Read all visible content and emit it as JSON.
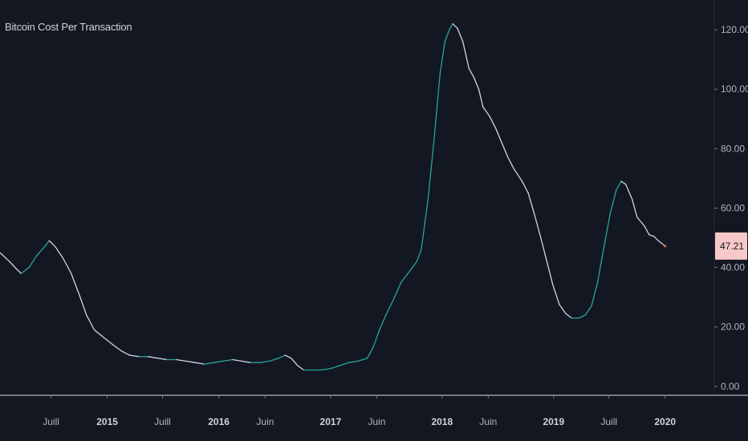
{
  "chart_data": {
    "type": "line",
    "title": "Bitcoin Cost Per Transaction",
    "xlabel": "",
    "ylabel": "",
    "ylim": [
      -3,
      130
    ],
    "xlim": [
      "2014-01-15",
      "2020-06-10"
    ],
    "y_ticks": [
      "120.00",
      "100.00",
      "80.00",
      "60.00",
      "40.00",
      "20.00",
      "0.00"
    ],
    "y_tick_values": [
      120,
      100,
      80,
      60,
      40,
      20,
      0
    ],
    "x_ticks": [
      {
        "label": "Juill",
        "date": "2014-07-01",
        "bold": false
      },
      {
        "label": "2015",
        "date": "2015-01-01",
        "bold": true
      },
      {
        "label": "Juill",
        "date": "2015-07-01",
        "bold": false
      },
      {
        "label": "2016",
        "date": "2016-01-01",
        "bold": true
      },
      {
        "label": "Juin",
        "date": "2016-06-01",
        "bold": false
      },
      {
        "label": "2017",
        "date": "2017-01-01",
        "bold": true
      },
      {
        "label": "Juin",
        "date": "2017-06-01",
        "bold": false
      },
      {
        "label": "2018",
        "date": "2018-01-01",
        "bold": true
      },
      {
        "label": "Juin",
        "date": "2018-06-01",
        "bold": false
      },
      {
        "label": "2019",
        "date": "2019-01-01",
        "bold": true
      },
      {
        "label": "Juill",
        "date": "2019-07-01",
        "bold": false
      },
      {
        "label": "2020",
        "date": "2020-01-01",
        "bold": true
      }
    ],
    "last_value_label": "47.21",
    "last_value": 47.21,
    "grid": false,
    "colors": {
      "background": "#131722",
      "line_up": "#26a69a",
      "line_down": "#d1d4dc",
      "label_bg": "#f7c8c8",
      "axis": "#787b86",
      "end_point": "#ef5350"
    },
    "series": [
      {
        "points": [
          [
            "2014-01-15",
            45
          ],
          [
            "2014-02-15",
            42
          ],
          [
            "2014-03-10",
            39.5
          ],
          [
            "2014-03-25",
            38
          ],
          [
            "2014-04-20",
            40
          ],
          [
            "2014-05-15",
            44
          ],
          [
            "2014-06-10",
            47
          ],
          [
            "2014-06-25",
            49
          ],
          [
            "2014-07-15",
            47
          ],
          [
            "2014-08-10",
            43
          ],
          [
            "2014-09-05",
            38
          ],
          [
            "2014-10-01",
            31
          ],
          [
            "2014-10-25",
            24
          ],
          [
            "2014-11-20",
            19
          ],
          [
            "2014-12-20",
            16.5
          ],
          [
            "2015-01-20",
            14
          ],
          [
            "2015-02-15",
            12
          ],
          [
            "2015-03-15",
            10.5
          ],
          [
            "2015-04-15",
            10
          ],
          [
            "2015-05-15",
            10
          ],
          [
            "2015-06-15",
            9.5
          ],
          [
            "2015-07-15",
            9
          ],
          [
            "2015-08-15",
            9
          ],
          [
            "2015-09-15",
            8.5
          ],
          [
            "2015-10-15",
            8
          ],
          [
            "2015-11-15",
            7.5
          ],
          [
            "2015-12-15",
            8
          ],
          [
            "2016-01-15",
            8.5
          ],
          [
            "2016-02-15",
            9
          ],
          [
            "2016-03-15",
            8.5
          ],
          [
            "2016-04-15",
            8
          ],
          [
            "2016-05-15",
            8
          ],
          [
            "2016-06-15",
            8.5
          ],
          [
            "2016-07-15",
            9.5
          ],
          [
            "2016-08-05",
            10.5
          ],
          [
            "2016-08-25",
            9.5
          ],
          [
            "2016-09-15",
            7
          ],
          [
            "2016-10-05",
            5.5
          ],
          [
            "2016-11-01",
            5.5
          ],
          [
            "2016-12-01",
            5.5
          ],
          [
            "2017-01-01",
            6
          ],
          [
            "2017-02-01",
            7
          ],
          [
            "2017-03-01",
            8
          ],
          [
            "2017-04-01",
            8.5
          ],
          [
            "2017-05-01",
            9.5
          ],
          [
            "2017-05-20",
            13
          ],
          [
            "2017-06-10",
            19
          ],
          [
            "2017-07-01",
            24
          ],
          [
            "2017-07-25",
            29
          ],
          [
            "2017-08-20",
            35
          ],
          [
            "2017-09-15",
            38.5
          ],
          [
            "2017-10-10",
            42
          ],
          [
            "2017-10-25",
            46
          ],
          [
            "2017-11-15",
            62
          ],
          [
            "2017-12-05",
            82
          ],
          [
            "2017-12-25",
            105
          ],
          [
            "2018-01-10",
            116
          ],
          [
            "2018-01-25",
            120
          ],
          [
            "2018-02-05",
            122
          ],
          [
            "2018-02-20",
            120.5
          ],
          [
            "2018-03-10",
            116
          ],
          [
            "2018-03-30",
            107
          ],
          [
            "2018-04-15",
            104
          ],
          [
            "2018-05-01",
            100
          ],
          [
            "2018-05-15",
            94
          ],
          [
            "2018-06-05",
            91
          ],
          [
            "2018-06-25",
            87
          ],
          [
            "2018-07-15",
            82
          ],
          [
            "2018-08-05",
            77
          ],
          [
            "2018-08-25",
            73
          ],
          [
            "2018-09-20",
            69
          ],
          [
            "2018-10-10",
            65
          ],
          [
            "2018-10-30",
            58
          ],
          [
            "2018-11-20",
            50
          ],
          [
            "2018-12-10",
            42
          ],
          [
            "2018-12-30",
            34
          ],
          [
            "2019-01-20",
            27.5
          ],
          [
            "2019-02-10",
            24.5
          ],
          [
            "2019-03-01",
            23
          ],
          [
            "2019-03-25",
            23
          ],
          [
            "2019-04-15",
            24
          ],
          [
            "2019-05-05",
            27
          ],
          [
            "2019-05-25",
            35
          ],
          [
            "2019-06-15",
            47
          ],
          [
            "2019-07-05",
            58
          ],
          [
            "2019-07-25",
            66
          ],
          [
            "2019-08-10",
            69
          ],
          [
            "2019-08-25",
            68
          ],
          [
            "2019-09-15",
            63
          ],
          [
            "2019-10-01",
            57
          ],
          [
            "2019-10-25",
            54
          ],
          [
            "2019-11-10",
            51
          ],
          [
            "2019-11-25",
            50.5
          ],
          [
            "2019-12-10",
            49
          ],
          [
            "2020-01-01",
            47.21
          ]
        ]
      }
    ]
  }
}
